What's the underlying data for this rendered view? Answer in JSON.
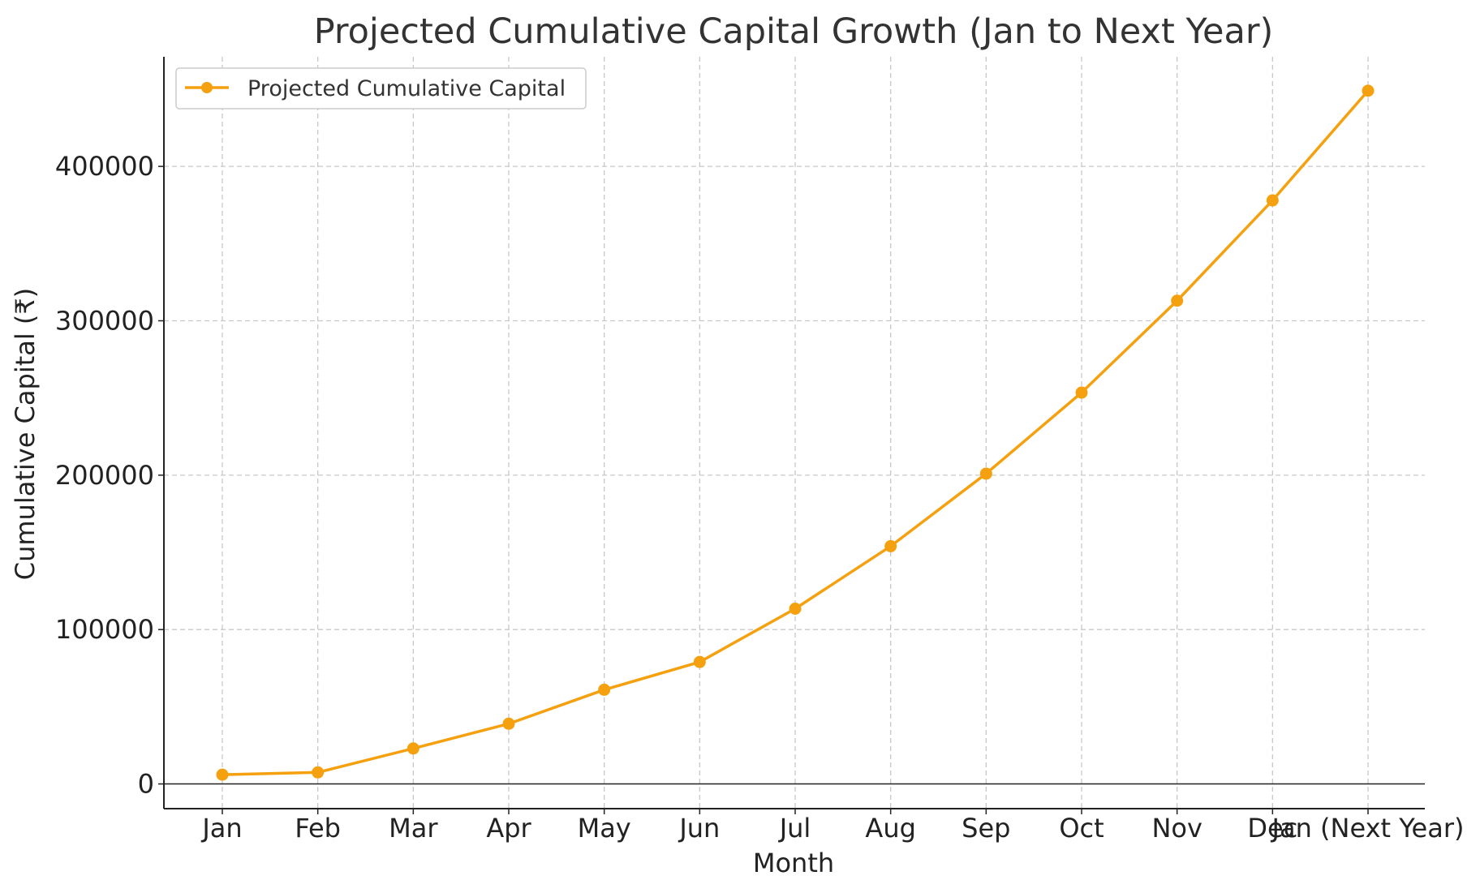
{
  "chart_data": {
    "type": "line",
    "title": "Projected Cumulative Capital Growth (Jan to Next Year)",
    "xlabel": "Month",
    "ylabel": "Cumulative Capital (₹)",
    "categories": [
      "Jan",
      "Feb",
      "Mar",
      "Apr",
      "May",
      "Jun",
      "Jul",
      "Aug",
      "Sep",
      "Oct",
      "Nov",
      "Dec",
      "Jan (Next Year)"
    ],
    "series": [
      {
        "name": "Projected Cumulative Capital",
        "color": "#f5a10f",
        "marker": "circle",
        "values": [
          6000,
          7500,
          23000,
          39000,
          61000,
          79000,
          113500,
          154000,
          201000,
          253500,
          313000,
          378000,
          449000
        ]
      }
    ],
    "yticks": [
      0,
      100000,
      200000,
      300000,
      400000
    ],
    "ylim": [
      -16000,
      471000
    ],
    "grid": true,
    "zero_line": true,
    "legend_position": "top-left"
  }
}
